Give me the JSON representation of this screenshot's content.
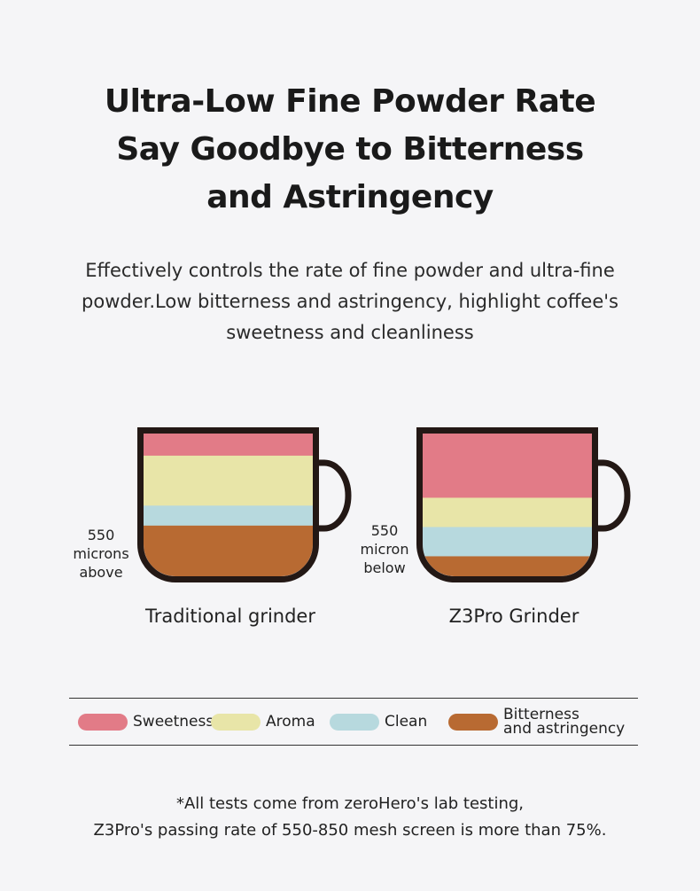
{
  "title": [
    "Ultra-Low Fine Powder Rate",
    "Say Goodbye to Bitterness",
    "and Astringency"
  ],
  "subtitle": "Effectively controls the rate of fine powder and ultra-fine powder.Low bitterness and astringency, highlight coffee's sweetness and cleanliness",
  "colors": {
    "sweetness": "#e27b87",
    "aroma": "#e8e5a8",
    "clean": "#b7d9de",
    "bitterness": "#b86a32",
    "outline": "#231815"
  },
  "cups": [
    {
      "caption": "Traditional grinder",
      "side_label": [
        "550",
        "microns",
        "above"
      ],
      "layers": {
        "sweetness": 0.155,
        "aroma": 0.35,
        "clean": 0.14,
        "bitterness": 0.355
      }
    },
    {
      "caption": "Z3Pro Grinder",
      "side_label": [
        "550",
        "micron",
        "below"
      ],
      "layers": {
        "sweetness": 0.45,
        "aroma": 0.205,
        "clean": 0.205,
        "bitterness": 0.14
      }
    }
  ],
  "legend": [
    {
      "key": "sweetness",
      "label": "Sweetness"
    },
    {
      "key": "aroma",
      "label": "Aroma"
    },
    {
      "key": "clean",
      "label": "Clean"
    },
    {
      "key": "bitterness",
      "label": "Bitterness and astringency",
      "lines": [
        "Bitterness",
        "and astringency"
      ]
    }
  ],
  "footnote": [
    "*All tests come from zeroHero's lab testing,",
    "Z3Pro's passing rate of 550-850 mesh screen is more than 75%."
  ]
}
